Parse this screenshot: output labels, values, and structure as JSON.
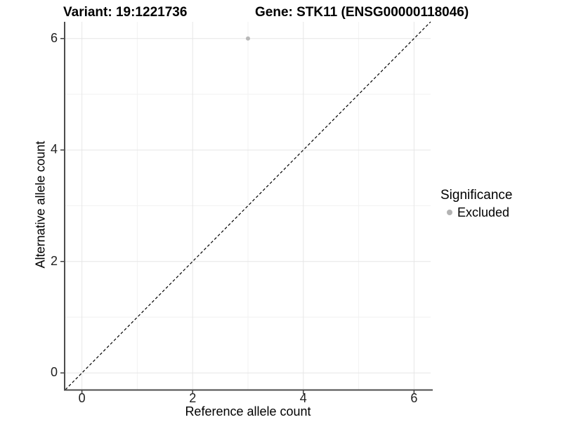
{
  "header": {
    "variant": "Variant: 19:1221736",
    "gene": "Gene: STK11 (ENSG00000118046)"
  },
  "chart_data": {
    "type": "scatter",
    "title": "Variant: 19:1221736    Gene: STK11 (ENSG00000118046)",
    "xlabel": "Reference allele count",
    "ylabel": "Alternative allele count",
    "xlim": [
      -0.3,
      6.3
    ],
    "ylim": [
      -0.3,
      6.3
    ],
    "x_ticks": [
      0,
      2,
      4,
      6
    ],
    "y_ticks": [
      0,
      2,
      4,
      6
    ],
    "x_minor_ticks": [
      1,
      3,
      5
    ],
    "y_minor_ticks": [
      1,
      3,
      5
    ],
    "grid": "major and minor gridlines on white panel",
    "series": [
      {
        "name": "Excluded",
        "color": "#b8b8b8",
        "points": [
          {
            "x": 3,
            "y": 6
          }
        ]
      }
    ],
    "reference_line": {
      "type": "identity",
      "slope": 1,
      "intercept": 0,
      "style": "dashed",
      "color": "#000000"
    },
    "legend": {
      "title": "Significance",
      "position": "right",
      "entries": [
        {
          "label": "Excluded",
          "color": "#b3b3b3",
          "marker": "circle"
        }
      ]
    },
    "style": {
      "grid_major_color": "#e6e6e6",
      "grid_minor_color": "#f2f2f2",
      "axis_line_color": "#4d4d4d",
      "tick_mark_color": "#333333",
      "point_color": "#b8b8b8"
    }
  }
}
